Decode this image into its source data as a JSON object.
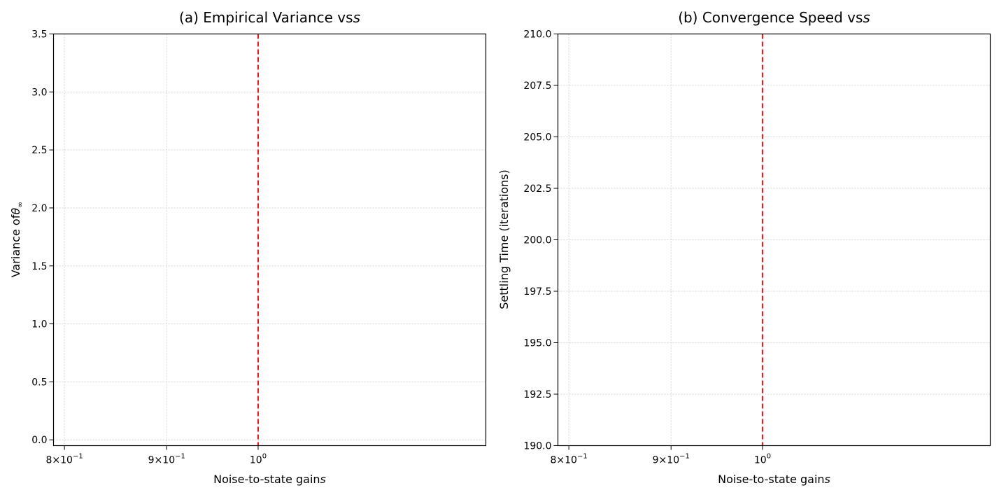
{
  "chart_data": [
    {
      "type": "line",
      "title": "(a) Empirical Variance vs",
      "title_var": "s",
      "xlabel": "Noise-to-state gain",
      "xlabel_var": "s",
      "ylabel": "Variance of",
      "ylabel_var": "θ",
      "ylabel_sub": "∞",
      "xscale": "log",
      "xlim": [
        0.79,
        1.3
      ],
      "ylim": [
        -0.05,
        3.5
      ],
      "grid": true,
      "x_ticks": [
        {
          "value": 0.8,
          "mant": "8",
          "exp": "−1"
        },
        {
          "value": 0.9,
          "mant": "9",
          "exp": "−1"
        },
        {
          "value": 1.0,
          "mant": "",
          "exp": "0"
        }
      ],
      "y_ticks": [
        {
          "value": 0.0,
          "label": "0.0"
        },
        {
          "value": 0.5,
          "label": "0.5"
        },
        {
          "value": 1.0,
          "label": "1.0"
        },
        {
          "value": 1.5,
          "label": "1.5"
        },
        {
          "value": 2.0,
          "label": "2.0"
        },
        {
          "value": 2.5,
          "label": "2.5"
        },
        {
          "value": 3.0,
          "label": "3.0"
        },
        {
          "value": 3.5,
          "label": "3.5"
        }
      ],
      "vline": {
        "x": 1.0,
        "color": "#d62728",
        "style": "dashed"
      },
      "series": []
    },
    {
      "type": "line",
      "title": "(b) Convergence Speed vs",
      "title_var": "s",
      "xlabel": "Noise-to-state gain",
      "xlabel_var": "s",
      "ylabel": "Settling Time (iterations)",
      "ylabel_var": "",
      "ylabel_sub": "",
      "xscale": "log",
      "xlim": [
        0.79,
        1.3
      ],
      "ylim": [
        190.0,
        210.0
      ],
      "grid": true,
      "x_ticks": [
        {
          "value": 0.8,
          "mant": "8",
          "exp": "−1"
        },
        {
          "value": 0.9,
          "mant": "9",
          "exp": "−1"
        },
        {
          "value": 1.0,
          "mant": "",
          "exp": "0"
        }
      ],
      "y_ticks": [
        {
          "value": 190.0,
          "label": "190.0"
        },
        {
          "value": 192.5,
          "label": "192.5"
        },
        {
          "value": 195.0,
          "label": "195.0"
        },
        {
          "value": 197.5,
          "label": "197.5"
        },
        {
          "value": 200.0,
          "label": "200.0"
        },
        {
          "value": 202.5,
          "label": "202.5"
        },
        {
          "value": 205.0,
          "label": "205.0"
        },
        {
          "value": 207.5,
          "label": "207.5"
        },
        {
          "value": 210.0,
          "label": "210.0"
        }
      ],
      "vline": {
        "x": 1.0,
        "color": "#d62728",
        "style": "dashed"
      },
      "series": []
    }
  ]
}
